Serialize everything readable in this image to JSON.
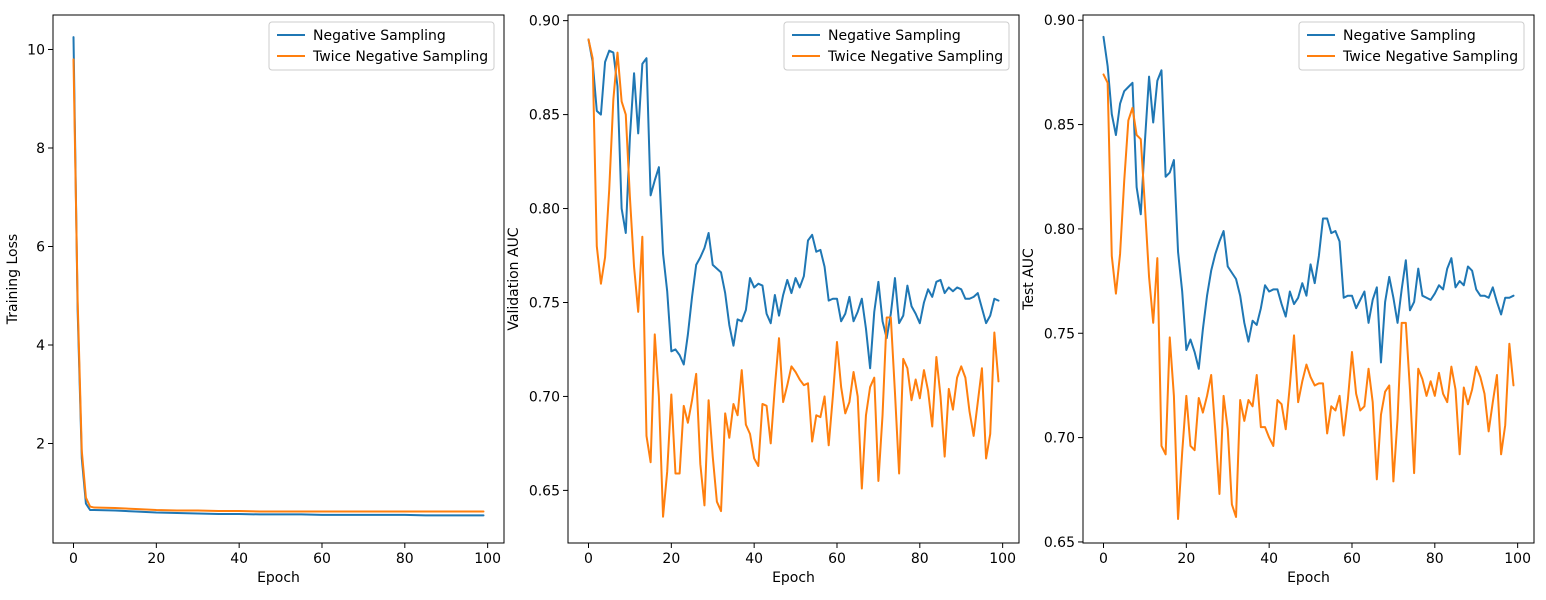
{
  "colors": {
    "negative": "#1f77b4",
    "twice": "#ff7f0e"
  },
  "chart_data": [
    {
      "type": "line",
      "title": "",
      "xlabel": "Epoch",
      "ylabel": "Training Loss",
      "xlim": [
        -4.95,
        103.95
      ],
      "ylim": [
        -0.02,
        10.7
      ],
      "xticks": [
        0,
        20,
        40,
        60,
        80,
        100
      ],
      "yticks": [
        2,
        4,
        6,
        8,
        10
      ],
      "ytick_labels": [
        "2",
        "4",
        "6",
        "8",
        "10"
      ],
      "grid": false,
      "legend": "top-right",
      "series": [
        {
          "name": "Negative Sampling",
          "color": "#1f77b4",
          "x": [
            0,
            1,
            2,
            3,
            4,
            5,
            10,
            15,
            20,
            25,
            30,
            35,
            40,
            45,
            50,
            55,
            60,
            65,
            70,
            75,
            80,
            85,
            90,
            95,
            99
          ],
          "values": [
            10.25,
            4.7,
            1.7,
            0.78,
            0.65,
            0.65,
            0.64,
            0.62,
            0.6,
            0.59,
            0.58,
            0.57,
            0.57,
            0.56,
            0.56,
            0.56,
            0.55,
            0.55,
            0.55,
            0.55,
            0.55,
            0.54,
            0.54,
            0.54,
            0.54
          ]
        },
        {
          "name": "Twice Negative Sampling",
          "color": "#ff7f0e",
          "x": [
            0,
            1,
            2,
            3,
            4,
            5,
            10,
            15,
            20,
            25,
            30,
            35,
            40,
            45,
            50,
            55,
            60,
            65,
            70,
            75,
            80,
            85,
            90,
            95,
            99
          ],
          "values": [
            9.8,
            4.9,
            1.85,
            0.9,
            0.72,
            0.7,
            0.69,
            0.67,
            0.65,
            0.64,
            0.64,
            0.63,
            0.63,
            0.62,
            0.62,
            0.62,
            0.62,
            0.62,
            0.62,
            0.62,
            0.62,
            0.62,
            0.62,
            0.62,
            0.62
          ]
        }
      ]
    },
    {
      "type": "line",
      "title": "",
      "xlabel": "Epoch",
      "ylabel": "Validation AUC",
      "xlim": [
        -4.95,
        103.95
      ],
      "ylim": [
        0.622,
        0.903
      ],
      "xticks": [
        0,
        20,
        40,
        60,
        80,
        100
      ],
      "yticks": [
        0.65,
        0.7,
        0.75,
        0.8,
        0.85,
        0.9
      ],
      "ytick_labels": [
        "0.65",
        "0.70",
        "0.75",
        "0.80",
        "0.85",
        "0.90"
      ],
      "grid": false,
      "legend": "top-right",
      "series": [
        {
          "name": "Negative Sampling",
          "color": "#1f77b4",
          "x": [
            0,
            1,
            2,
            3,
            4,
            5,
            6,
            7,
            8,
            9,
            10,
            11,
            12,
            13,
            14,
            15,
            16,
            17,
            18,
            19,
            20,
            21,
            22,
            23,
            24,
            25,
            26,
            27,
            28,
            29,
            30,
            31,
            32,
            33,
            34,
            35,
            36,
            37,
            38,
            39,
            40,
            41,
            42,
            43,
            44,
            45,
            46,
            47,
            48,
            49,
            50,
            51,
            52,
            53,
            54,
            55,
            56,
            57,
            58,
            59,
            60,
            61,
            62,
            63,
            64,
            65,
            66,
            67,
            68,
            69,
            70,
            71,
            72,
            73,
            74,
            75,
            76,
            77,
            78,
            79,
            80,
            81,
            82,
            83,
            84,
            85,
            86,
            87,
            88,
            89,
            90,
            91,
            92,
            93,
            94,
            95,
            96,
            97,
            98,
            99
          ],
          "values": [
            0.89,
            0.878,
            0.852,
            0.85,
            0.878,
            0.884,
            0.883,
            0.865,
            0.8,
            0.787,
            0.838,
            0.872,
            0.84,
            0.877,
            0.88,
            0.807,
            0.815,
            0.822,
            0.776,
            0.756,
            0.724,
            0.725,
            0.722,
            0.717,
            0.733,
            0.753,
            0.77,
            0.774,
            0.779,
            0.787,
            0.77,
            0.768,
            0.766,
            0.755,
            0.738,
            0.727,
            0.741,
            0.74,
            0.746,
            0.763,
            0.758,
            0.76,
            0.759,
            0.744,
            0.739,
            0.754,
            0.743,
            0.754,
            0.762,
            0.755,
            0.763,
            0.758,
            0.764,
            0.783,
            0.786,
            0.777,
            0.778,
            0.769,
            0.751,
            0.752,
            0.752,
            0.74,
            0.744,
            0.753,
            0.74,
            0.745,
            0.752,
            0.736,
            0.715,
            0.745,
            0.761,
            0.74,
            0.731,
            0.744,
            0.763,
            0.739,
            0.743,
            0.759,
            0.748,
            0.744,
            0.739,
            0.75,
            0.757,
            0.753,
            0.761,
            0.762,
            0.755,
            0.758,
            0.756,
            0.758,
            0.757,
            0.752,
            0.752,
            0.753,
            0.755,
            0.747,
            0.739,
            0.743,
            0.752,
            0.751
          ]
        },
        {
          "name": "Twice Negative Sampling",
          "color": "#ff7f0e",
          "x": [
            0,
            1,
            2,
            3,
            4,
            5,
            6,
            7,
            8,
            9,
            10,
            11,
            12,
            13,
            14,
            15,
            16,
            17,
            18,
            19,
            20,
            21,
            22,
            23,
            24,
            25,
            26,
            27,
            28,
            29,
            30,
            31,
            32,
            33,
            34,
            35,
            36,
            37,
            38,
            39,
            40,
            41,
            42,
            43,
            44,
            45,
            46,
            47,
            48,
            49,
            50,
            51,
            52,
            53,
            54,
            55,
            56,
            57,
            58,
            59,
            60,
            61,
            62,
            63,
            64,
            65,
            66,
            67,
            68,
            69,
            70,
            71,
            72,
            73,
            74,
            75,
            76,
            77,
            78,
            79,
            80,
            81,
            82,
            83,
            84,
            85,
            86,
            87,
            88,
            89,
            90,
            91,
            92,
            93,
            94,
            95,
            96,
            97,
            98,
            99
          ],
          "values": [
            0.89,
            0.88,
            0.78,
            0.76,
            0.774,
            0.81,
            0.858,
            0.883,
            0.857,
            0.85,
            0.806,
            0.769,
            0.745,
            0.785,
            0.679,
            0.665,
            0.733,
            0.7,
            0.636,
            0.66,
            0.701,
            0.659,
            0.659,
            0.695,
            0.686,
            0.698,
            0.712,
            0.664,
            0.642,
            0.698,
            0.668,
            0.644,
            0.639,
            0.691,
            0.678,
            0.696,
            0.69,
            0.714,
            0.685,
            0.68,
            0.667,
            0.663,
            0.696,
            0.695,
            0.675,
            0.705,
            0.731,
            0.697,
            0.706,
            0.716,
            0.713,
            0.709,
            0.706,
            0.707,
            0.676,
            0.69,
            0.689,
            0.7,
            0.674,
            0.7,
            0.729,
            0.705,
            0.691,
            0.697,
            0.713,
            0.7,
            0.651,
            0.69,
            0.705,
            0.71,
            0.655,
            0.69,
            0.742,
            0.742,
            0.702,
            0.659,
            0.72,
            0.715,
            0.698,
            0.709,
            0.699,
            0.714,
            0.703,
            0.684,
            0.721,
            0.7,
            0.668,
            0.704,
            0.693,
            0.71,
            0.716,
            0.71,
            0.692,
            0.679,
            0.697,
            0.715,
            0.667,
            0.68,
            0.734,
            0.708
          ]
        }
      ]
    },
    {
      "type": "line",
      "title": "",
      "xlabel": "Epoch",
      "ylabel": "Test AUC",
      "xlim": [
        -4.95,
        103.95
      ],
      "ylim": [
        0.6495,
        0.9025
      ],
      "xticks": [
        0,
        20,
        40,
        60,
        80,
        100
      ],
      "yticks": [
        0.65,
        0.7,
        0.75,
        0.8,
        0.85,
        0.9
      ],
      "ytick_labels": [
        "0.65",
        "0.70",
        "0.75",
        "0.80",
        "0.85",
        "0.90"
      ],
      "grid": false,
      "legend": "top-right",
      "series": [
        {
          "name": "Negative Sampling",
          "color": "#1f77b4",
          "x": [
            0,
            1,
            2,
            3,
            4,
            5,
            6,
            7,
            8,
            9,
            10,
            11,
            12,
            13,
            14,
            15,
            16,
            17,
            18,
            19,
            20,
            21,
            22,
            23,
            24,
            25,
            26,
            27,
            28,
            29,
            30,
            31,
            32,
            33,
            34,
            35,
            36,
            37,
            38,
            39,
            40,
            41,
            42,
            43,
            44,
            45,
            46,
            47,
            48,
            49,
            50,
            51,
            52,
            53,
            54,
            55,
            56,
            57,
            58,
            59,
            60,
            61,
            62,
            63,
            64,
            65,
            66,
            67,
            68,
            69,
            70,
            71,
            72,
            73,
            74,
            75,
            76,
            77,
            78,
            79,
            80,
            81,
            82,
            83,
            84,
            85,
            86,
            87,
            88,
            89,
            90,
            91,
            92,
            93,
            94,
            95,
            96,
            97,
            98,
            99
          ],
          "values": [
            0.892,
            0.878,
            0.855,
            0.845,
            0.86,
            0.866,
            0.868,
            0.87,
            0.82,
            0.807,
            0.842,
            0.873,
            0.851,
            0.871,
            0.876,
            0.825,
            0.827,
            0.833,
            0.789,
            0.77,
            0.742,
            0.747,
            0.741,
            0.733,
            0.752,
            0.768,
            0.78,
            0.788,
            0.794,
            0.799,
            0.782,
            0.779,
            0.776,
            0.768,
            0.755,
            0.746,
            0.756,
            0.754,
            0.762,
            0.773,
            0.77,
            0.771,
            0.771,
            0.764,
            0.758,
            0.77,
            0.764,
            0.767,
            0.774,
            0.768,
            0.783,
            0.774,
            0.787,
            0.805,
            0.805,
            0.798,
            0.799,
            0.794,
            0.767,
            0.768,
            0.768,
            0.762,
            0.766,
            0.77,
            0.755,
            0.766,
            0.772,
            0.736,
            0.765,
            0.777,
            0.767,
            0.755,
            0.771,
            0.785,
            0.761,
            0.765,
            0.781,
            0.768,
            0.767,
            0.766,
            0.769,
            0.773,
            0.771,
            0.781,
            0.786,
            0.772,
            0.775,
            0.773,
            0.782,
            0.78,
            0.771,
            0.768,
            0.768,
            0.767,
            0.772,
            0.765,
            0.759,
            0.767,
            0.767,
            0.768
          ]
        },
        {
          "name": "Twice Negative Sampling",
          "color": "#ff7f0e",
          "x": [
            0,
            1,
            2,
            3,
            4,
            5,
            6,
            7,
            8,
            9,
            10,
            11,
            12,
            13,
            14,
            15,
            16,
            17,
            18,
            19,
            20,
            21,
            22,
            23,
            24,
            25,
            26,
            27,
            28,
            29,
            30,
            31,
            32,
            33,
            34,
            35,
            36,
            37,
            38,
            39,
            40,
            41,
            42,
            43,
            44,
            45,
            46,
            47,
            48,
            49,
            50,
            51,
            52,
            53,
            54,
            55,
            56,
            57,
            58,
            59,
            60,
            61,
            62,
            63,
            64,
            65,
            66,
            67,
            68,
            69,
            70,
            71,
            72,
            73,
            74,
            75,
            76,
            77,
            78,
            79,
            80,
            81,
            82,
            83,
            84,
            85,
            86,
            87,
            88,
            89,
            90,
            91,
            92,
            93,
            94,
            95,
            96,
            97,
            98,
            99
          ],
          "values": [
            0.874,
            0.87,
            0.787,
            0.769,
            0.788,
            0.823,
            0.852,
            0.858,
            0.845,
            0.843,
            0.811,
            0.777,
            0.755,
            0.786,
            0.696,
            0.692,
            0.748,
            0.72,
            0.661,
            0.693,
            0.72,
            0.696,
            0.694,
            0.719,
            0.712,
            0.72,
            0.73,
            0.703,
            0.673,
            0.72,
            0.704,
            0.668,
            0.662,
            0.718,
            0.708,
            0.718,
            0.715,
            0.73,
            0.705,
            0.705,
            0.7,
            0.696,
            0.718,
            0.716,
            0.704,
            0.725,
            0.749,
            0.717,
            0.727,
            0.735,
            0.729,
            0.725,
            0.726,
            0.726,
            0.702,
            0.715,
            0.713,
            0.72,
            0.701,
            0.718,
            0.741,
            0.721,
            0.713,
            0.715,
            0.733,
            0.717,
            0.68,
            0.711,
            0.722,
            0.725,
            0.679,
            0.709,
            0.755,
            0.755,
            0.723,
            0.683,
            0.733,
            0.728,
            0.72,
            0.727,
            0.72,
            0.731,
            0.721,
            0.717,
            0.734,
            0.723,
            0.692,
            0.724,
            0.716,
            0.723,
            0.734,
            0.729,
            0.721,
            0.703,
            0.717,
            0.73,
            0.692,
            0.706,
            0.745,
            0.725
          ]
        }
      ]
    }
  ]
}
